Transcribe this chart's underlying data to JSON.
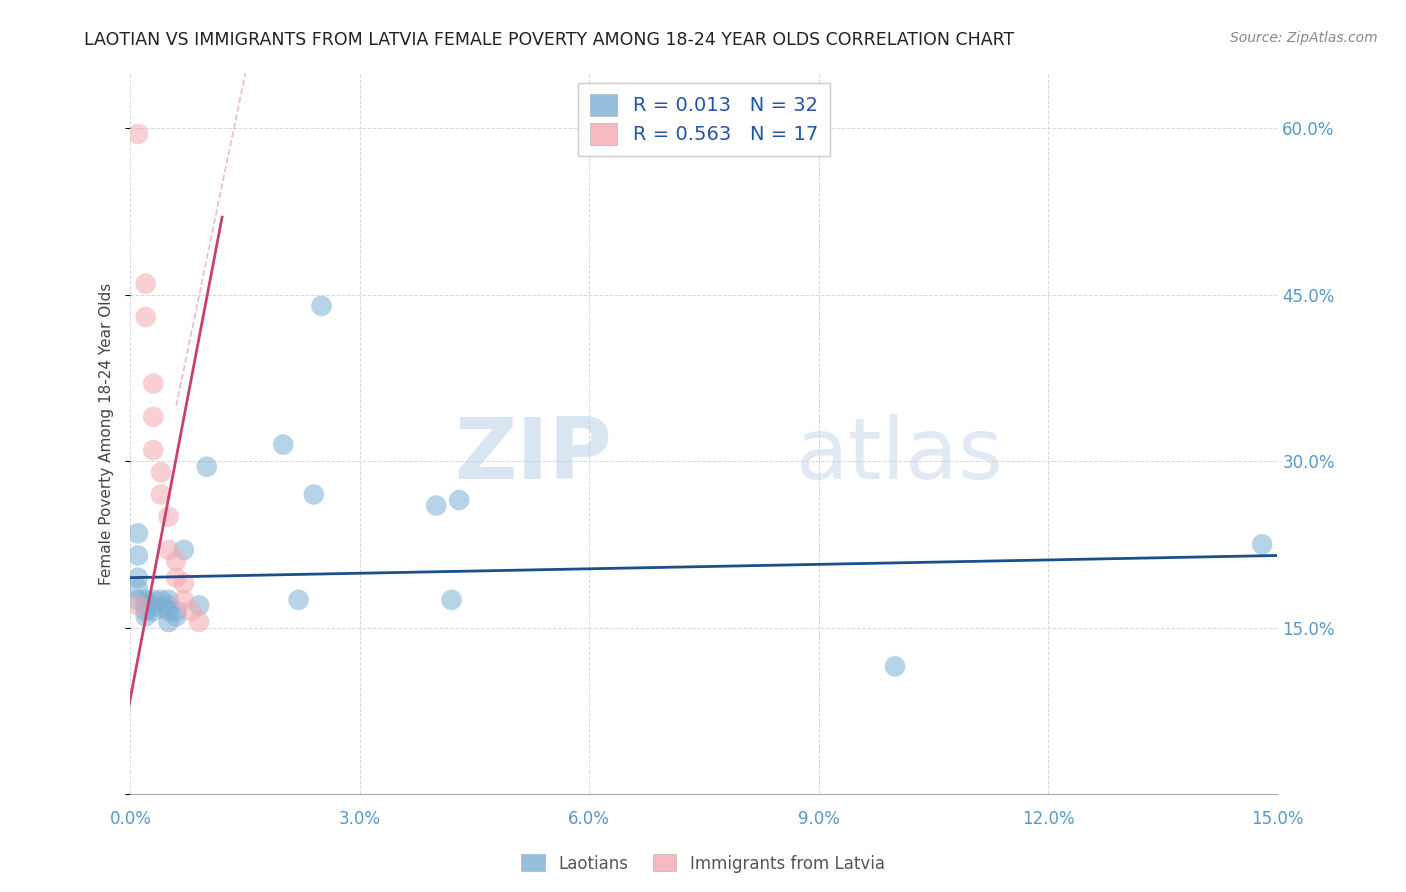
{
  "title": "LAOTIAN VS IMMIGRANTS FROM LATVIA FEMALE POVERTY AMONG 18-24 YEAR OLDS CORRELATION CHART",
  "source": "Source: ZipAtlas.com",
  "ylabel": "Female Poverty Among 18-24 Year Olds",
  "xlim": [
    0,
    0.15
  ],
  "ylim": [
    0,
    0.65
  ],
  "xticks": [
    0.0,
    0.03,
    0.06,
    0.09,
    0.12,
    0.15
  ],
  "yticks": [
    0.0,
    0.15,
    0.3,
    0.45,
    0.6
  ],
  "legend_label1": "Laotians",
  "legend_label2": "Immigrants from Latvia",
  "blue_color": "#7BAFD4",
  "pink_color": "#F4A8B0",
  "blue_line_color": "#1B4F8A",
  "pink_line_color": "#C94070",
  "watermark_zip": "ZIP",
  "watermark_atlas": "atlas",
  "laotian_x": [
    0.001,
    0.001,
    0.001,
    0.001,
    0.001,
    0.002,
    0.002,
    0.002,
    0.002,
    0.003,
    0.003,
    0.003,
    0.004,
    0.004,
    0.005,
    0.005,
    0.005,
    0.005,
    0.006,
    0.006,
    0.007,
    0.009,
    0.01,
    0.02,
    0.022,
    0.024,
    0.025,
    0.04,
    0.042,
    0.043,
    0.1,
    0.148
  ],
  "laotian_y": [
    0.235,
    0.215,
    0.195,
    0.185,
    0.175,
    0.175,
    0.17,
    0.165,
    0.16,
    0.175,
    0.17,
    0.165,
    0.175,
    0.168,
    0.175,
    0.17,
    0.165,
    0.155,
    0.165,
    0.16,
    0.22,
    0.17,
    0.295,
    0.315,
    0.175,
    0.27,
    0.44,
    0.26,
    0.175,
    0.265,
    0.115,
    0.225
  ],
  "latvia_x": [
    0.001,
    0.001,
    0.002,
    0.002,
    0.003,
    0.003,
    0.003,
    0.004,
    0.004,
    0.005,
    0.005,
    0.006,
    0.006,
    0.007,
    0.007,
    0.008,
    0.009
  ],
  "latvia_y": [
    0.595,
    0.17,
    0.46,
    0.43,
    0.37,
    0.34,
    0.31,
    0.29,
    0.27,
    0.25,
    0.22,
    0.21,
    0.195,
    0.19,
    0.175,
    0.165,
    0.155
  ],
  "blue_trend_x": [
    0.0,
    0.15
  ],
  "blue_trend_y": [
    0.195,
    0.215
  ],
  "pink_trend_x": [
    -0.001,
    0.012
  ],
  "pink_trend_y": [
    0.05,
    0.52
  ]
}
